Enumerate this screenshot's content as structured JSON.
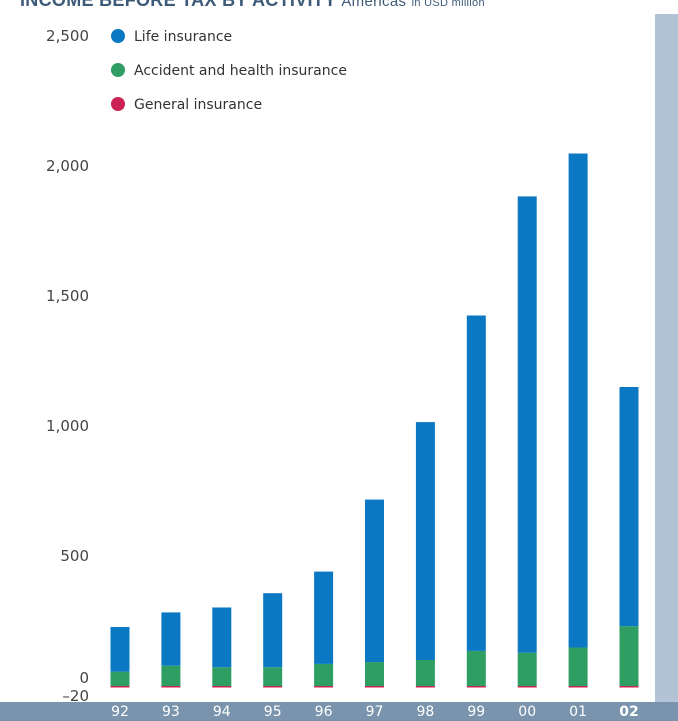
{
  "title": {
    "main": "INCOME BEFORE TAX BY ACTIVITY",
    "region": "Americas",
    "unit": "in USD million"
  },
  "colors": {
    "life": "#0b78c4",
    "accident": "#2f9e63",
    "general": "#cc2255",
    "bottom_band": "#7a94ad",
    "right_band": "#b2c3d6"
  },
  "chart_data": {
    "type": "bar",
    "stacked": true,
    "categories": [
      "92",
      "93",
      "94",
      "95",
      "96",
      "97",
      "98",
      "99",
      "00",
      "01",
      "02"
    ],
    "highlight_category": "02",
    "series": [
      {
        "name": "Life insurance",
        "color": "#0b78c4",
        "values": [
          172,
          205,
          230,
          285,
          355,
          625,
          915,
          1290,
          1755,
          1900,
          920
        ]
      },
      {
        "name": "Accident and health insurance",
        "color": "#2f9e63",
        "values": [
          55,
          78,
          72,
          72,
          85,
          92,
          100,
          135,
          128,
          148,
          230
        ]
      },
      {
        "name": "General insurance",
        "color": "#cc2255",
        "values": [
          -3,
          -2,
          -3,
          -5,
          -3,
          -3,
          -3,
          -3,
          -3,
          -3,
          -3
        ]
      }
    ],
    "y_ticks": [
      {
        "value": 2500,
        "label": "2,500"
      },
      {
        "value": 2000,
        "label": "2,000"
      },
      {
        "value": 1500,
        "label": "1,500"
      },
      {
        "value": 1000,
        "label": "1,000"
      },
      {
        "value": 500,
        "label": "500"
      },
      {
        "value": 0,
        "label": "0"
      },
      {
        "value": -20,
        "label": "–20"
      }
    ],
    "ylim": [
      -20,
      2500
    ],
    "grid": false,
    "legend_position": "top-left"
  }
}
